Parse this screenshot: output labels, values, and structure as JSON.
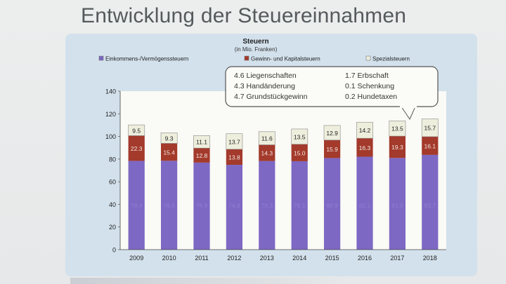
{
  "slide": {
    "title": "Entwicklung der Steuereinnahmen"
  },
  "chart_data": {
    "type": "bar",
    "stacked": true,
    "title": "Steuern",
    "subtitle": "(in Mio. Franken)",
    "categories": [
      "2009",
      "2010",
      "2011",
      "2012",
      "2013",
      "2014",
      "2015",
      "2016",
      "2017",
      "2018"
    ],
    "series": [
      {
        "name": "Einkommens-/Vermögenssteuern",
        "color": "#7d68c4",
        "values": [
          78.4,
          78.5,
          76.9,
          74.9,
          78.3,
          78.1,
          80.9,
          82.1,
          81.0,
          83.7
        ]
      },
      {
        "name": "Gewinn- und Kapitalsteuern",
        "color": "#a33a2b",
        "values": [
          22.3,
          15.4,
          12.8,
          13.8,
          14.3,
          15.0,
          15.9,
          16.3,
          19.3,
          16.1
        ]
      },
      {
        "name": "Spezialsteuern",
        "color": "#eeeedd",
        "values": [
          9.5,
          9.3,
          11.1,
          13.7,
          11.6,
          13.5,
          12.9,
          14.2,
          13.5,
          15.7
        ]
      }
    ],
    "ylim": [
      0,
      140
    ],
    "yticks": [
      0,
      20,
      40,
      60,
      80,
      100,
      120,
      140
    ],
    "grid": false,
    "legend_position": "top",
    "callout": {
      "left": [
        "4.6 Liegenschaften",
        "4.3 Handänderung",
        "4.7 Grundstückgewinn"
      ],
      "right": [
        "1.7 Erbschaft",
        "0.1 Schenkung",
        "0.2 Hundetaxen"
      ]
    }
  }
}
